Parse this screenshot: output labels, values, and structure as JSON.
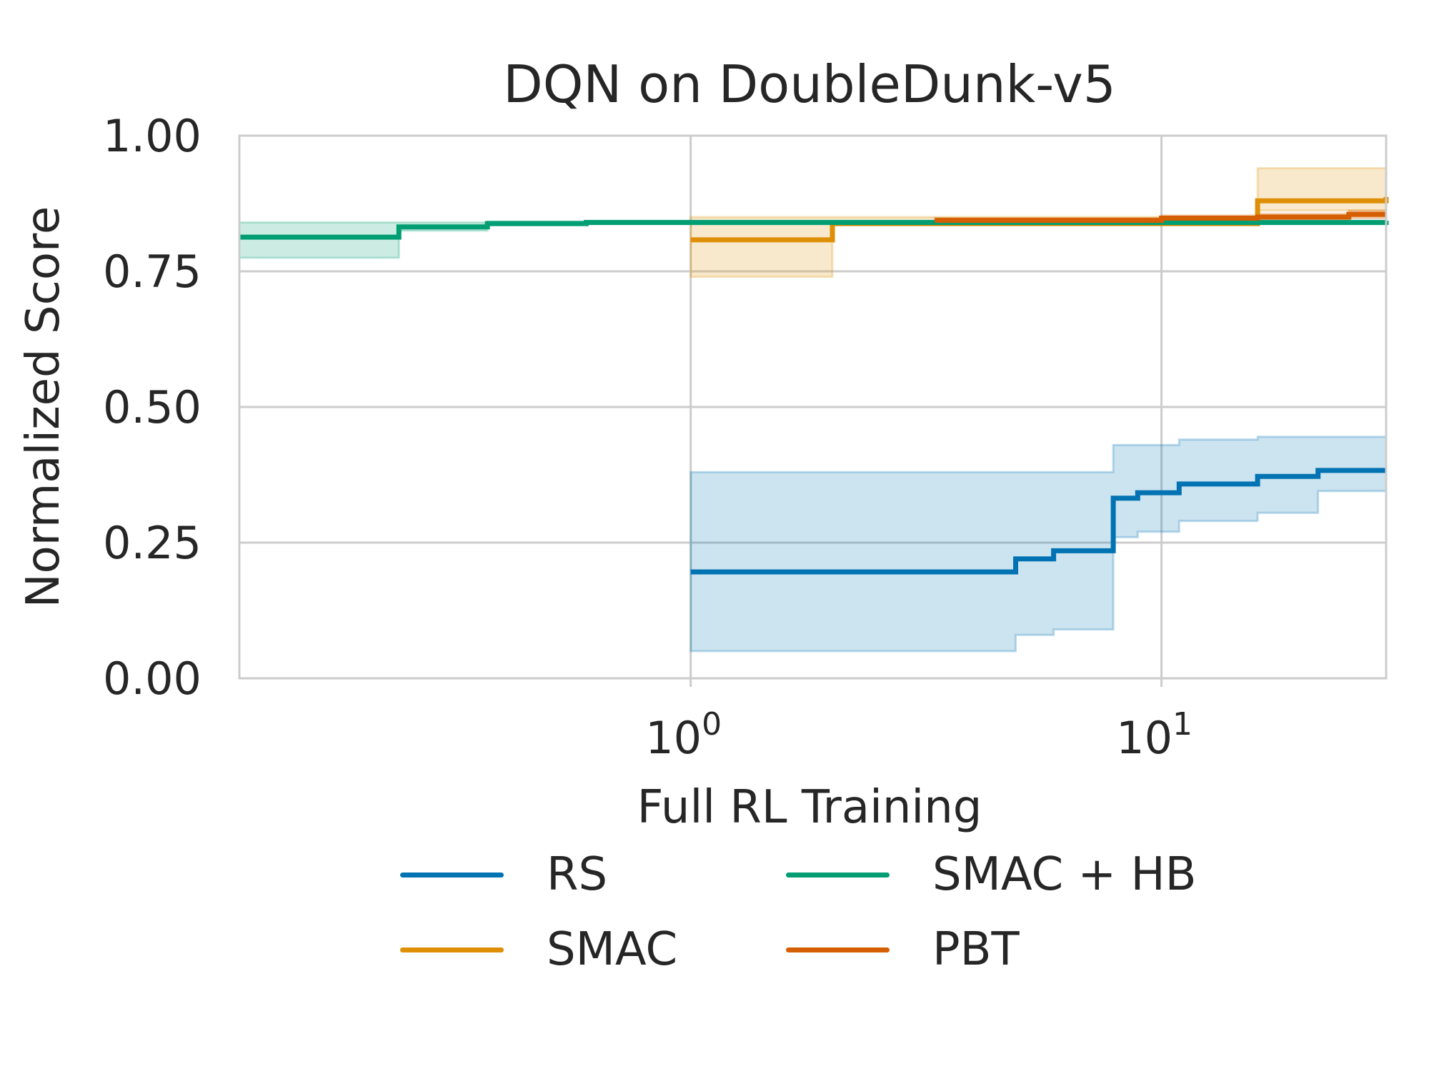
{
  "chart_data": {
    "type": "line",
    "title": "DQN on DoubleDunk-v5",
    "xlabel": "Full RL Training",
    "ylabel": "Normalized Score",
    "xscale": "log",
    "xlim": [
      0.11,
      30
    ],
    "ylim": [
      0,
      1
    ],
    "x_ticks": [
      {
        "value": 1,
        "base": "10",
        "exp": "0"
      },
      {
        "value": 10,
        "base": "10",
        "exp": "1"
      }
    ],
    "y_ticks": [
      {
        "value": 0.0,
        "label": "0.00"
      },
      {
        "value": 0.25,
        "label": "0.25"
      },
      {
        "value": 0.5,
        "label": "0.50"
      },
      {
        "value": 0.75,
        "label": "0.75"
      },
      {
        "value": 1.0,
        "label": "1.00"
      }
    ],
    "grid": true,
    "legend_position": "below",
    "series": [
      {
        "name": "RS",
        "color": "#0173b2",
        "x": [
          1.0,
          4.9,
          5.9,
          7.9,
          8.9,
          10.9,
          16.0,
          21.5,
          30
        ],
        "y": [
          0.196,
          0.22,
          0.235,
          0.332,
          0.342,
          0.358,
          0.372,
          0.383,
          0.383
        ],
        "lower": [
          0.05,
          0.08,
          0.09,
          0.26,
          0.27,
          0.29,
          0.305,
          0.345,
          0.35
        ],
        "upper": [
          0.38,
          0.38,
          0.38,
          0.43,
          0.43,
          0.44,
          0.445,
          0.445,
          0.445
        ]
      },
      {
        "name": "SMAC",
        "color": "#de8f05",
        "x": [
          1.0,
          2.0,
          16.0,
          30
        ],
        "y": [
          0.808,
          0.838,
          0.88,
          0.887
        ],
        "lower": [
          0.74,
          0.835,
          0.862,
          0.868
        ],
        "upper": [
          0.85,
          0.85,
          0.94,
          0.945
        ]
      },
      {
        "name": "SMAC + HB",
        "color": "#029e73",
        "x": [
          0.11,
          0.24,
          0.37,
          0.6,
          30
        ],
        "y": [
          0.813,
          0.832,
          0.838,
          0.84,
          0.843
        ],
        "lower": [
          0.775,
          0.825,
          0.835,
          0.838,
          0.84
        ],
        "upper": [
          0.84,
          0.84,
          0.842,
          0.843,
          0.846
        ]
      },
      {
        "name": "PBT",
        "color": "#d55e00",
        "x": [
          3.3,
          10.0,
          16.0,
          25.0,
          30
        ],
        "y": [
          0.844,
          0.848,
          0.85,
          0.855,
          0.855
        ],
        "lower": [
          0.84,
          0.843,
          0.845,
          0.848,
          0.848
        ],
        "upper": [
          0.848,
          0.853,
          0.856,
          0.862,
          0.862
        ]
      }
    ]
  }
}
